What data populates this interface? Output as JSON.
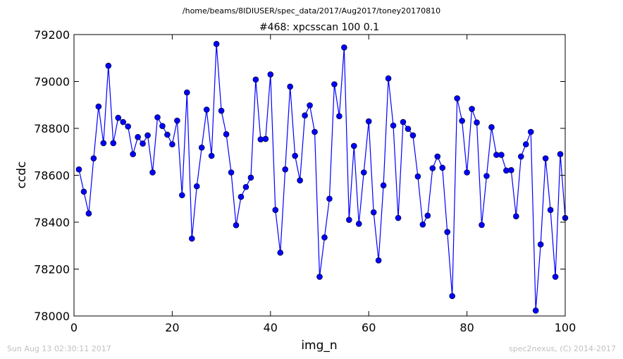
{
  "figure": {
    "suptitle": "/home/beams/8IDIUSER/spec_data/2017/Aug2017/toney20170810",
    "footer_left": "Sun Aug 13 02:30:11 2017",
    "footer_right": "spec2nexus, (C) 2014-2017"
  },
  "chart_data": {
    "type": "line",
    "title": "#468: xpcsscan 100 0.1",
    "xlabel": "img_n",
    "ylabel": "ccdc",
    "xlim": [
      0,
      100
    ],
    "ylim": [
      78000,
      79200
    ],
    "xticks": [
      0,
      20,
      40,
      60,
      80,
      100
    ],
    "yticks": [
      78000,
      78200,
      78400,
      78600,
      78800,
      79000,
      79200
    ],
    "grid": false,
    "marker": "circle",
    "color": "#0000ff",
    "series": [
      {
        "x": [
          1,
          2,
          3,
          4,
          5,
          6,
          7,
          8,
          9,
          10,
          11,
          12,
          13,
          14,
          15,
          16,
          17,
          18,
          19,
          20,
          21,
          22,
          23,
          24,
          25,
          26,
          27,
          28,
          29,
          30,
          31,
          32,
          33,
          34,
          35,
          36,
          37,
          38,
          39,
          40,
          41,
          42,
          43,
          44,
          45,
          46,
          47,
          48,
          49,
          50,
          51,
          52,
          53,
          54,
          55,
          56,
          57,
          58,
          59,
          60,
          61,
          62,
          63,
          64,
          65,
          66,
          67,
          68,
          69,
          70,
          71,
          72,
          73,
          74,
          75,
          76,
          77,
          78,
          79,
          80,
          81,
          82,
          83,
          84,
          85,
          86,
          87,
          88,
          89,
          90,
          91,
          92,
          93,
          94,
          95,
          96,
          97,
          98,
          99,
          100
        ],
        "values": [
          78625,
          78530,
          78437,
          78672,
          78893,
          78737,
          79067,
          78737,
          78845,
          78827,
          78808,
          78690,
          78763,
          78735,
          78770,
          78612,
          78847,
          78810,
          78773,
          78732,
          78833,
          78515,
          78953,
          78330,
          78553,
          78718,
          78880,
          78683,
          79160,
          78875,
          78775,
          78612,
          78387,
          78508,
          78550,
          78590,
          79008,
          78753,
          78755,
          79030,
          78452,
          78270,
          78625,
          78978,
          78683,
          78578,
          78855,
          78898,
          78785,
          78167,
          78335,
          78500,
          78988,
          78852,
          79145,
          78410,
          78725,
          78393,
          78612,
          78830,
          78442,
          78237,
          78557,
          79013,
          78812,
          78418,
          78827,
          78798,
          78770,
          78595,
          78390,
          78428,
          78630,
          78680,
          78632,
          78358,
          78085,
          78928,
          78832,
          78612,
          78883,
          78825,
          78388,
          78597,
          78805,
          78687,
          78687,
          78620,
          78622,
          78425,
          78680,
          78732,
          78785,
          78023,
          78305,
          78672,
          78452,
          78167,
          78690,
          78418
        ]
      }
    ]
  }
}
